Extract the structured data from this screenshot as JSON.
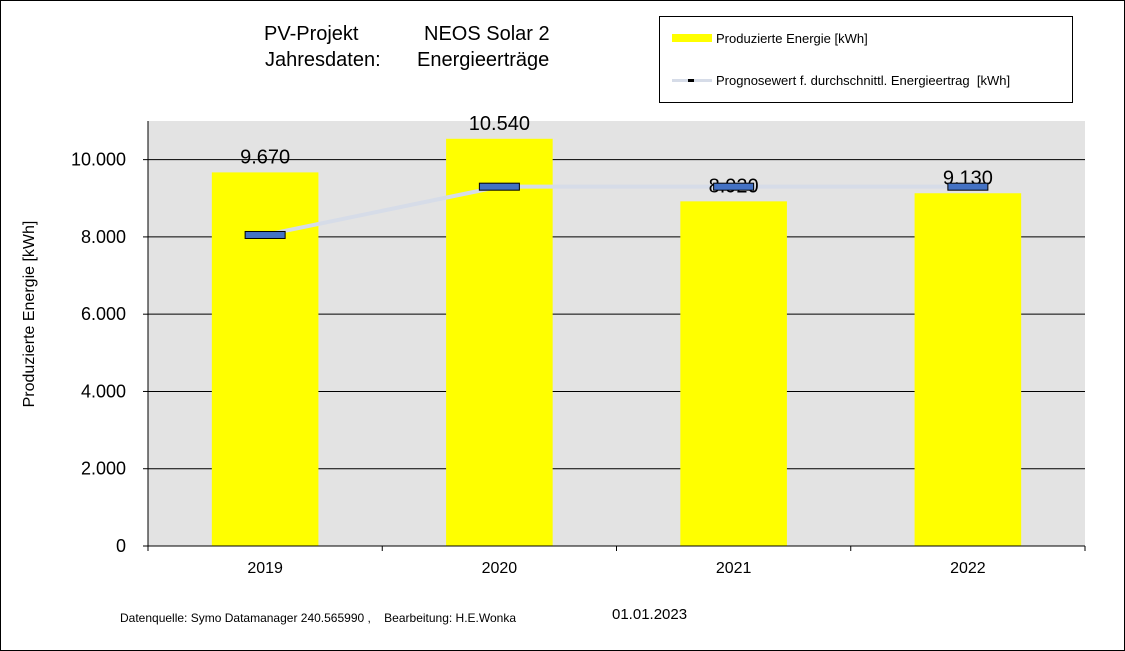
{
  "title": {
    "line1_a": "PV-Projekt",
    "line1_b": "NEOS Solar 2",
    "line2_a": "Jahresdaten:",
    "line2_b": "Energieerträge"
  },
  "legend": {
    "bar_label": "Produzierte Energie [kWh]",
    "line_label": "Prognosewert f. durchschnittl. Energieertrag  [kWh]"
  },
  "footer": {
    "source": "Datenquelle: Symo Datamanager 240.565990 ,    Bearbeitung: H.E.Wonka",
    "date": "01.01.2023"
  },
  "colors": {
    "bar": "#ffff00",
    "plot_bg": "#e3e3e3",
    "marker": "#4472c4",
    "forecast_line": "#d6dce8"
  },
  "chart_data": {
    "type": "bar",
    "categories": [
      "2019",
      "2020",
      "2021",
      "2022"
    ],
    "series": [
      {
        "name": "Produzierte Energie [kWh]",
        "type": "bar",
        "values": [
          9670,
          10540,
          8920,
          9130
        ],
        "data_labels": [
          "9.670",
          "10.540",
          "8.920",
          "9.130"
        ]
      },
      {
        "name": "Prognosewert f. durchschnittl. Energieertrag  [kWh]",
        "type": "line",
        "values": [
          8050,
          9300,
          9300,
          9300
        ]
      }
    ],
    "ylabel": "Produzierte Energie [kWh]",
    "ylim": [
      0,
      11000
    ],
    "yticks": [
      0,
      2000,
      4000,
      6000,
      8000,
      10000
    ],
    "ytick_labels": [
      "0",
      "2.000",
      "4.000",
      "6.000",
      "8.000",
      "10.000"
    ],
    "grid": true,
    "legend_position": "top-right"
  }
}
